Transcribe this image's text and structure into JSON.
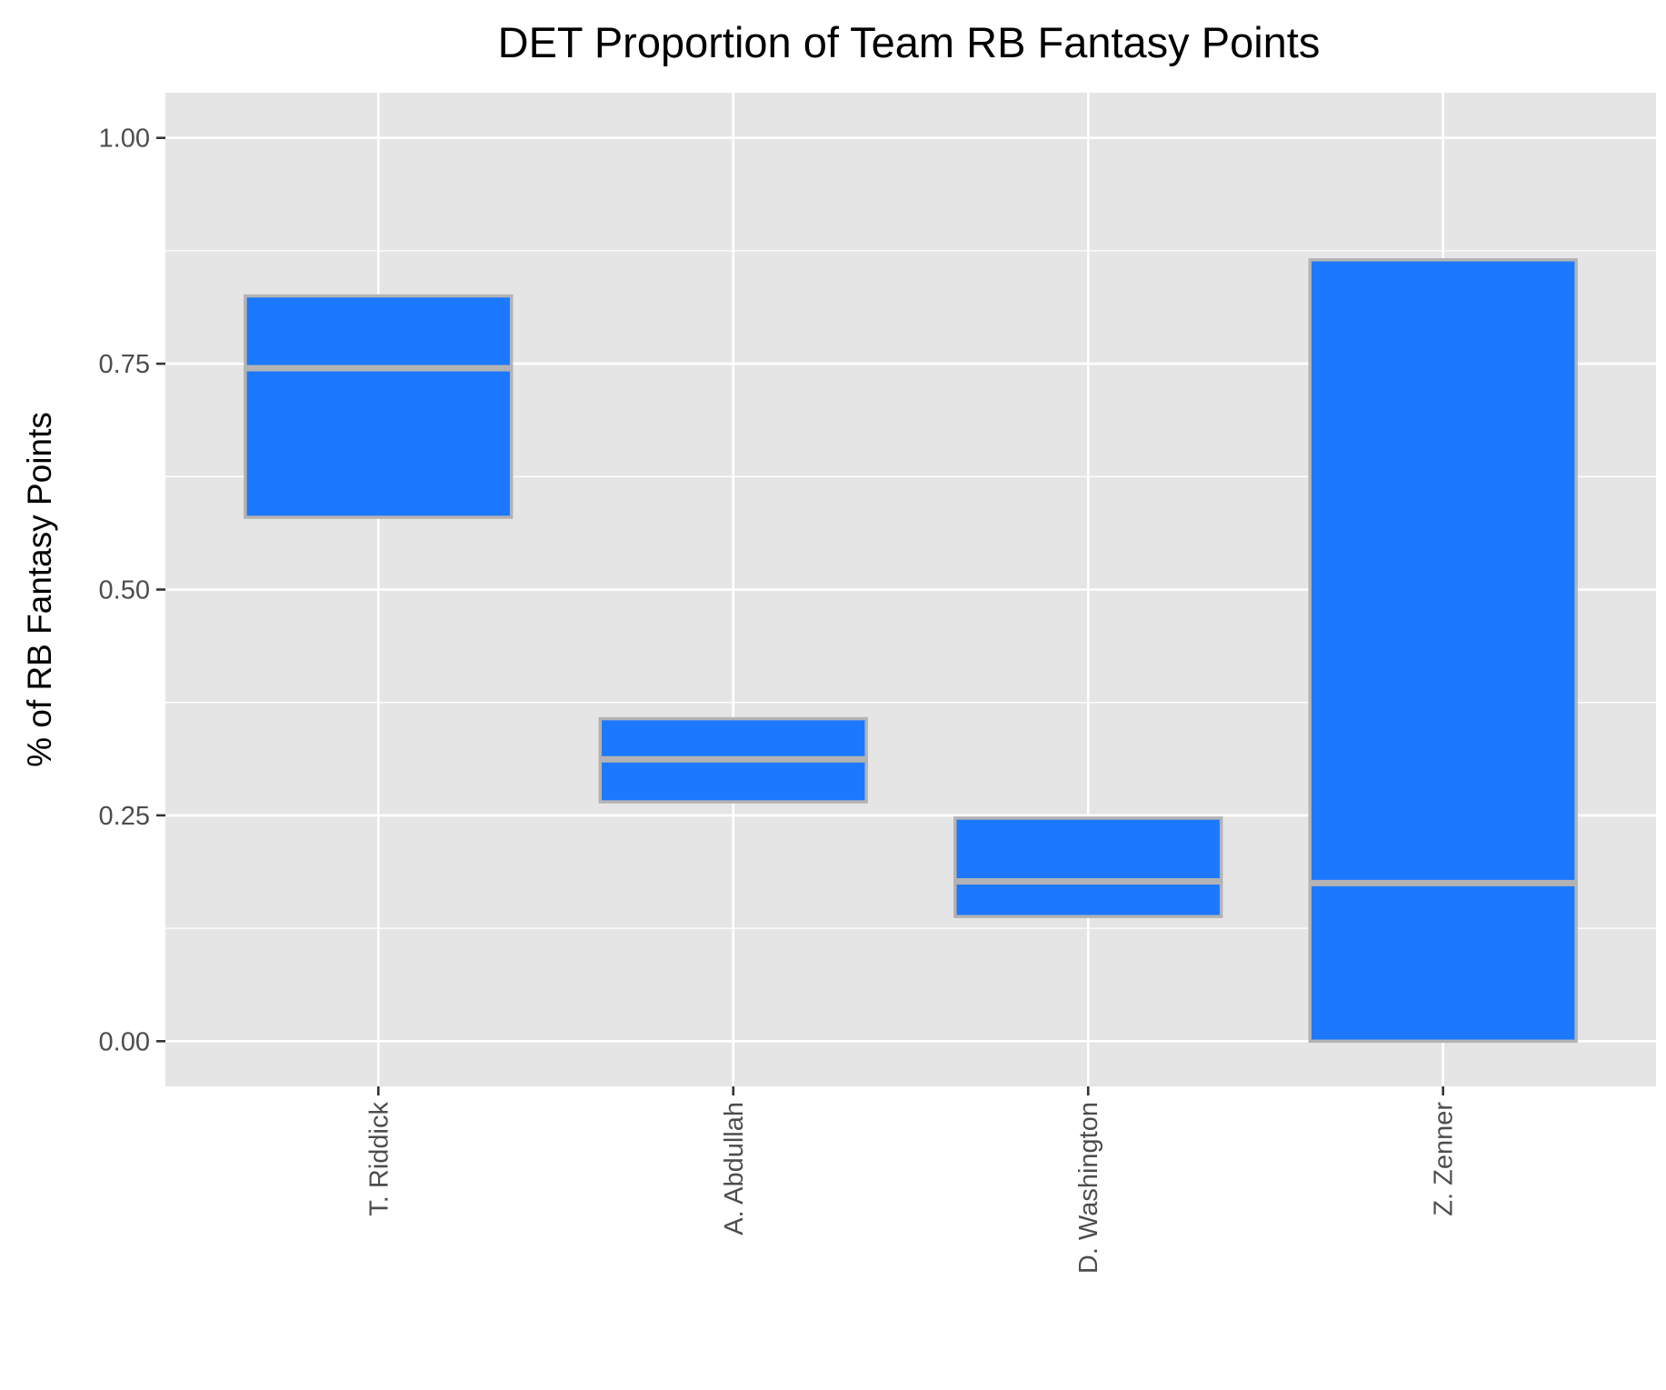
{
  "chart_data": {
    "type": "boxplot",
    "title": "DET Proportion of Team RB Fantasy Points",
    "xlabel": "",
    "ylabel": "% of RB Fantasy Points",
    "ylim": [
      -0.05,
      1.05
    ],
    "y_ticks": [
      0.0,
      0.25,
      0.5,
      0.75,
      1.0
    ],
    "y_tick_labels": [
      "0.00",
      "0.25",
      "0.50",
      "0.75",
      "1.00"
    ],
    "categories": [
      "T. Riddick",
      "A. Abdullah",
      "D. Washington",
      "Z. Zenner"
    ],
    "boxes": [
      {
        "category": "T. Riddick",
        "lower": 0.58,
        "median": 0.745,
        "upper": 0.825
      },
      {
        "category": "A. Abdullah",
        "lower": 0.265,
        "median": 0.312,
        "upper": 0.357
      },
      {
        "category": "D. Washington",
        "lower": 0.138,
        "median": 0.177,
        "upper": 0.247
      },
      {
        "category": "Z. Zenner",
        "lower": 0.0,
        "median": 0.175,
        "upper": 0.865
      }
    ],
    "grid": true,
    "legend": "none",
    "colors": {
      "box_fill": "#1c78ff",
      "box_outline": "#b3b3b3",
      "panel_background": "#e5e5e5",
      "grid_line": "#ffffff"
    }
  }
}
